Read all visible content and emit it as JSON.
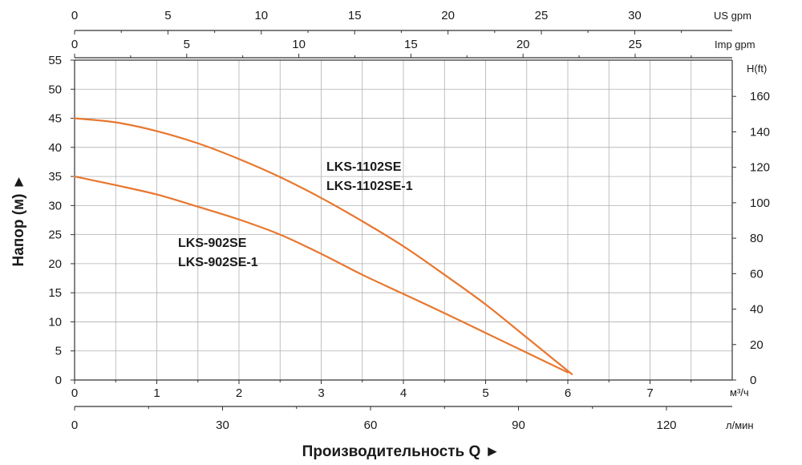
{
  "chart_data": {
    "type": "line",
    "colors": {
      "curve": "#E8772E",
      "grid": "#b0b0b0",
      "axis": "#333333",
      "text": "#1a1a1a"
    },
    "grid": true,
    "x_primary": {
      "unit": "м³/ч",
      "range": [
        0,
        8
      ],
      "ticks": [
        0,
        1,
        2,
        3,
        4,
        5,
        6,
        7
      ]
    },
    "x_lpm": {
      "unit": "л/мин",
      "ticks": [
        0,
        30,
        60,
        90,
        120
      ]
    },
    "x_us_gpm": {
      "unit": "US gpm",
      "ticks": [
        0,
        5,
        10,
        15,
        20,
        25,
        30
      ]
    },
    "x_imp_gpm": {
      "unit": "Imp gpm",
      "ticks": [
        0,
        5,
        10,
        15,
        20,
        25
      ]
    },
    "y_left": {
      "title": "Напор (м) ►",
      "range": [
        0,
        55
      ],
      "ticks": [
        0,
        5,
        10,
        15,
        20,
        25,
        30,
        35,
        40,
        45,
        50,
        55
      ]
    },
    "y_right": {
      "unit": "H(ft)",
      "ticks": [
        0,
        20,
        40,
        60,
        80,
        100,
        120,
        140,
        160
      ]
    },
    "xlabel": "Производительность Q ►",
    "series": [
      {
        "name_lines": [
          "LKS-1102SE",
          "LKS-1102SE-1"
        ],
        "x": [
          0,
          0.5,
          1,
          1.5,
          2,
          2.5,
          3,
          3.5,
          4,
          4.5,
          5,
          5.5,
          6.05
        ],
        "y": [
          45,
          44.3,
          42.8,
          40.7,
          38,
          34.9,
          31.3,
          27.3,
          23,
          18.1,
          13,
          7.3,
          1
        ]
      },
      {
        "name_lines": [
          "LKS-902SE",
          "LKS-902SE-1"
        ],
        "x": [
          0,
          0.5,
          1,
          1.5,
          2,
          2.5,
          3,
          3.5,
          4,
          4.5,
          5,
          5.5,
          6
        ],
        "y": [
          35,
          33.5,
          31.9,
          29.8,
          27.6,
          25,
          21.7,
          18.1,
          14.8,
          11.5,
          8.1,
          4.7,
          1.3
        ]
      }
    ]
  }
}
